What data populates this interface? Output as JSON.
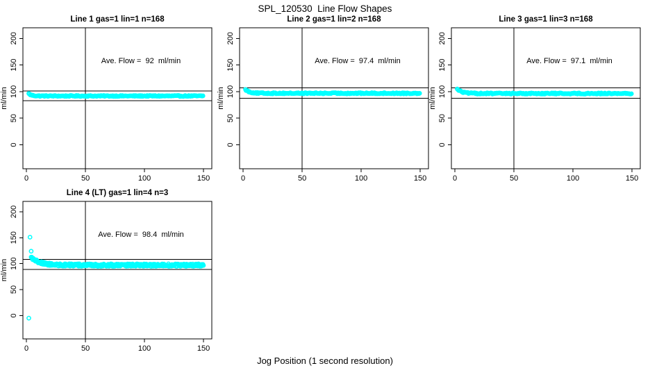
{
  "page": {
    "title": "SPL_120530  Line Flow Shapes",
    "xlabel": "Jog Position (1 second resolution)"
  },
  "chart_data": {
    "type": "scatter",
    "title": "SPL_120530  Line Flow Shapes",
    "xlabel": "Jog Position (1 second resolution)",
    "ylabel": "ml/min",
    "point_color": "#00ffff",
    "axis_color": "#000000",
    "x_ticks": [
      0,
      50,
      100,
      150
    ],
    "y_ticks": [
      0,
      50,
      100,
      150,
      200
    ],
    "xlim": [
      -3,
      157
    ],
    "ylim": [
      -45,
      220
    ],
    "vline_x": 50,
    "legend": "none",
    "grid": false,
    "panels": [
      {
        "title": "Line 1 gas=1 lin=1 n=168",
        "annotation": "Ave. Flow =  92  ml/min",
        "ave_flow": 92,
        "n": 168,
        "hlines": [
          101.2,
          82.8
        ],
        "series": {
          "x_start": 2.5,
          "x_end": 150,
          "y_start": 95,
          "y_plateau": 91.8,
          "tau": 2.5,
          "jitter": 0.9,
          "passes": 1
        },
        "extra_points": [
          [
            2,
            96.5
          ]
        ]
      },
      {
        "title": "Line 2 gas=1 lin=2 n=168",
        "annotation": "Ave. Flow =  97.4  ml/min",
        "ave_flow": 97.4,
        "n": 168,
        "hlines": [
          107.1,
          87.7
        ],
        "series": {
          "x_start": 2.5,
          "x_end": 150,
          "y_start": 103,
          "y_plateau": 96.9,
          "tau": 3.5,
          "jitter": 1.1,
          "passes": 1
        },
        "extra_points": [
          [
            2,
            104
          ]
        ]
      },
      {
        "title": "Line 3 gas=1 lin=3 n=168",
        "annotation": "Ave. Flow =  97.1  ml/min",
        "ave_flow": 97.1,
        "n": 168,
        "hlines": [
          106.8,
          87.4
        ],
        "series": {
          "x_start": 2.5,
          "x_end": 150,
          "y_start": 104,
          "y_plateau": 96.5,
          "tau": 4,
          "jitter": 1.1,
          "passes": 1
        },
        "extra_points": [
          [
            2,
            105
          ]
        ]
      },
      {
        "title": "Line 4 (LT) gas=1 lin=4 n=3",
        "annotation": "Ave. Flow =  98.4  ml/min",
        "ave_flow": 98.4,
        "n": 3,
        "hlines": [
          108.2,
          88.6
        ],
        "series": {
          "x_start": 4,
          "x_end": 150,
          "y_start": 112,
          "y_plateau": 97.2,
          "tau": 7,
          "jitter": 2.4,
          "passes": 2
        },
        "extra_points": [
          [
            3,
            151
          ],
          [
            4,
            124
          ],
          [
            2,
            -5
          ]
        ]
      }
    ]
  }
}
